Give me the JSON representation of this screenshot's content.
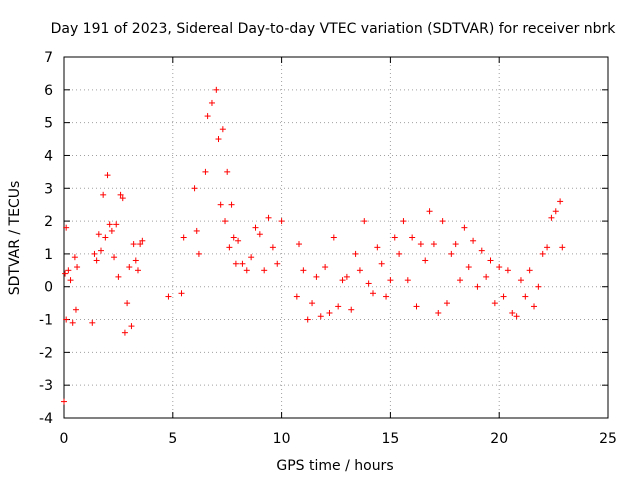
{
  "chart_data": {
    "type": "scatter",
    "title": "Day 191 of 2023, Sidereal Day-to-day VTEC variation (SDTVAR) for receiver nbrk",
    "xlabel": "GPS time / hours",
    "ylabel": "SDTVAR / TECUs",
    "xlim": [
      0,
      25
    ],
    "ylim": [
      -4,
      7
    ],
    "x_ticks": [
      0,
      5,
      10,
      15,
      20,
      25
    ],
    "y_ticks": [
      -4,
      -3,
      -2,
      -1,
      0,
      1,
      2,
      3,
      4,
      5,
      6,
      7
    ],
    "x_tick_labels": [
      "0",
      "5",
      "10",
      "15",
      "20",
      "25"
    ],
    "y_tick_labels": [
      "-4",
      "-3",
      "-2",
      "-1",
      "0",
      "1",
      "2",
      "3",
      "4",
      "5",
      "6",
      "7"
    ],
    "grid": true,
    "marker": "+",
    "marker_color": "#ff0000",
    "series": [
      {
        "name": "SDTVAR",
        "x": [
          0.0,
          0.05,
          0.1,
          0.1,
          0.2,
          0.3,
          0.4,
          0.5,
          0.55,
          0.6,
          1.3,
          1.4,
          1.5,
          1.6,
          1.7,
          1.8,
          1.9,
          2.0,
          2.1,
          2.2,
          2.3,
          2.4,
          2.5,
          2.6,
          2.7,
          2.8,
          2.9,
          3.0,
          3.1,
          3.2,
          3.3,
          3.4,
          3.5,
          3.6,
          4.8,
          5.4,
          5.5,
          6.0,
          6.1,
          6.2,
          6.5,
          6.6,
          6.8,
          7.0,
          7.1,
          7.2,
          7.3,
          7.4,
          7.5,
          7.6,
          7.7,
          7.8,
          7.9,
          8.0,
          8.2,
          8.4,
          8.6,
          8.8,
          9.0,
          9.2,
          9.4,
          9.6,
          9.8,
          10.0,
          10.7,
          10.8,
          11.0,
          11.2,
          11.4,
          11.6,
          11.8,
          12.0,
          12.2,
          12.4,
          12.6,
          12.8,
          13.0,
          13.2,
          13.4,
          13.6,
          13.8,
          14.0,
          14.2,
          14.4,
          14.6,
          14.8,
          15.0,
          15.2,
          15.4,
          15.6,
          15.8,
          16.0,
          16.2,
          16.4,
          16.6,
          16.8,
          17.0,
          17.2,
          17.4,
          17.6,
          17.8,
          18.0,
          18.2,
          18.4,
          18.6,
          18.8,
          19.0,
          19.2,
          19.4,
          19.6,
          19.8,
          20.0,
          20.2,
          20.4,
          20.6,
          20.8,
          21.0,
          21.2,
          21.4,
          21.6,
          21.8,
          22.0,
          22.2,
          22.4,
          22.6,
          22.8,
          22.9
        ],
        "y": [
          -3.5,
          0.4,
          1.8,
          -1.0,
          0.5,
          0.2,
          -1.1,
          0.9,
          -0.7,
          0.6,
          -1.1,
          1.0,
          0.8,
          1.6,
          1.1,
          2.8,
          1.5,
          3.4,
          1.9,
          1.7,
          0.9,
          1.9,
          0.3,
          2.8,
          2.7,
          -1.4,
          -0.5,
          0.6,
          -1.2,
          1.3,
          0.8,
          0.5,
          1.3,
          1.4,
          -0.3,
          -0.2,
          1.5,
          3.0,
          1.7,
          1.0,
          3.5,
          5.2,
          5.6,
          6.0,
          4.5,
          2.5,
          4.8,
          2.0,
          3.5,
          1.2,
          2.5,
          1.5,
          0.7,
          1.4,
          0.7,
          0.5,
          0.9,
          1.8,
          1.6,
          0.5,
          2.1,
          1.2,
          0.7,
          2.0,
          -0.3,
          1.3,
          0.5,
          -1.0,
          -0.5,
          0.3,
          -0.9,
          0.6,
          -0.8,
          1.5,
          -0.6,
          0.2,
          0.3,
          -0.7,
          1.0,
          0.5,
          2.0,
          0.1,
          -0.2,
          1.2,
          0.7,
          -0.3,
          0.2,
          1.5,
          1.0,
          2.0,
          0.2,
          1.5,
          -0.6,
          1.3,
          0.8,
          2.3,
          1.3,
          -0.8,
          2.0,
          -0.5,
          1.0,
          1.3,
          0.2,
          1.8,
          0.6,
          1.4,
          0.0,
          1.1,
          0.3,
          0.8,
          -0.5,
          0.6,
          -0.3,
          0.5,
          -0.8,
          -0.9,
          0.2,
          -0.3,
          0.5,
          -0.6,
          0.0,
          1.0,
          1.2,
          2.1,
          2.3,
          2.6,
          1.2
        ]
      }
    ]
  }
}
